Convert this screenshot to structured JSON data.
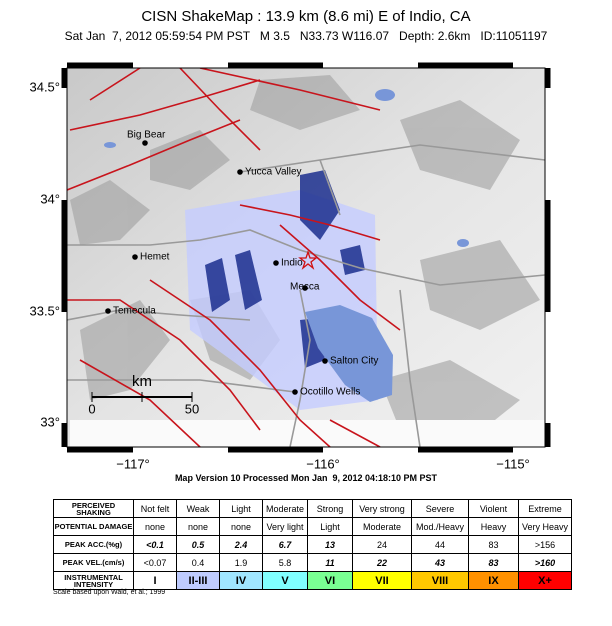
{
  "header": {
    "title": "CISN ShakeMap : 13.9 km (8.6 mi) E of Indio, CA",
    "subtitle": "Sat Jan  7, 2012 05:59:54 PM PST   M 3.5   N33.73 W116.07   Depth: 2.6km   ID:11051197"
  },
  "map": {
    "lat_labels": [
      "34.5°",
      "34°",
      "33.5°",
      "33°"
    ],
    "lon_labels": [
      "−117°",
      "−116°",
      "−115°"
    ],
    "cities": [
      "Big Bear",
      "Yucca Valley",
      "Hemet",
      "Indio",
      "Mecca",
      "Temecula",
      "Salton City",
      "Ocotillo Wells"
    ],
    "scale": {
      "unit": "km",
      "start": "0",
      "end": "50"
    }
  },
  "footer": "Map Version 10 Processed Mon Jan  9, 2012 04:18:10 PM PST",
  "legend": {
    "rows": [
      [
        "PERCEIVED SHAKING",
        "Not felt",
        "Weak",
        "Light",
        "Moderate",
        "Strong",
        "Very strong",
        "Severe",
        "Violent",
        "Extreme"
      ],
      [
        "POTENTIAL DAMAGE",
        "none",
        "none",
        "none",
        "Very light",
        "Light",
        "Moderate",
        "Mod./Heavy",
        "Heavy",
        "Very Heavy"
      ],
      [
        "PEAK ACC.(%g)",
        "<0.1",
        "0.5",
        "2.4",
        "6.7",
        "13",
        "24",
        "44",
        "83",
        ">156"
      ],
      [
        "PEAK VEL.(cm/s)",
        "<0.07",
        "0.4",
        "1.9",
        "5.8",
        "11",
        "22",
        "43",
        "83",
        ">160"
      ],
      [
        "INSTRUMENTAL INTENSITY",
        "I",
        "II-III",
        "IV",
        "V",
        "VI",
        "VII",
        "VIII",
        "IX",
        "X+"
      ]
    ],
    "note": "Scale based upon Wald, et al.; 1999"
  }
}
